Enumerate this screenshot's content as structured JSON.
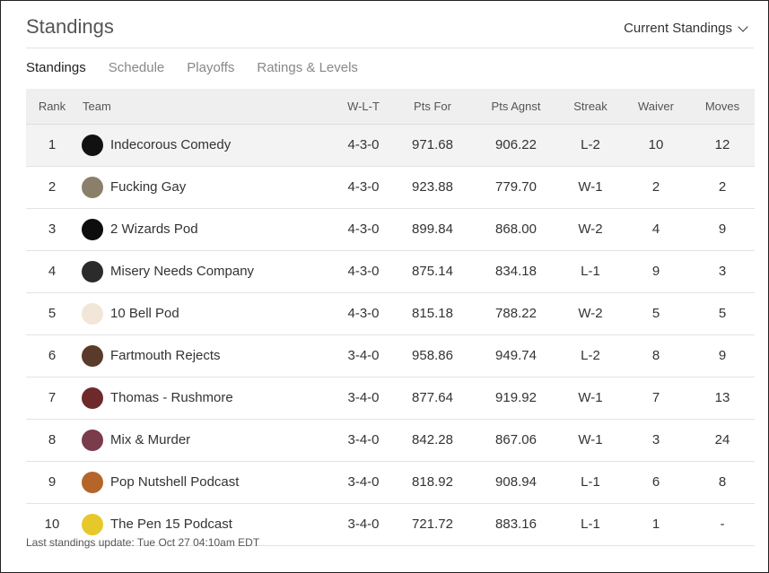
{
  "header": {
    "title": "Standings",
    "view_select": "Current Standings"
  },
  "tabs": [
    {
      "label": "Standings",
      "active": true
    },
    {
      "label": "Schedule",
      "active": false
    },
    {
      "label": "Playoffs",
      "active": false
    },
    {
      "label": "Ratings & Levels",
      "active": false
    }
  ],
  "table": {
    "columns": [
      "Rank",
      "Team",
      "W-L-T",
      "Pts For",
      "Pts Agnst",
      "Streak",
      "Waiver",
      "Moves"
    ],
    "rows": [
      {
        "rank": "1",
        "team": "Indecorous Comedy",
        "wlt": "4-3-0",
        "pts_for": "971.68",
        "pts_agnst": "906.22",
        "streak": "L-2",
        "waiver": "10",
        "moves": "12",
        "avatar_color": "#111111"
      },
      {
        "rank": "2",
        "team": "Fucking Gay",
        "wlt": "4-3-0",
        "pts_for": "923.88",
        "pts_agnst": "779.70",
        "streak": "W-1",
        "waiver": "2",
        "moves": "2",
        "avatar_color": "#8a7f6a"
      },
      {
        "rank": "3",
        "team": "2 Wizards Pod",
        "wlt": "4-3-0",
        "pts_for": "899.84",
        "pts_agnst": "868.00",
        "streak": "W-2",
        "waiver": "4",
        "moves": "9",
        "avatar_color": "#0d0d0d"
      },
      {
        "rank": "4",
        "team": "Misery Needs Company",
        "wlt": "4-3-0",
        "pts_for": "875.14",
        "pts_agnst": "834.18",
        "streak": "L-1",
        "waiver": "9",
        "moves": "3",
        "avatar_color": "#2b2b2b"
      },
      {
        "rank": "5",
        "team": "10 Bell Pod",
        "wlt": "4-3-0",
        "pts_for": "815.18",
        "pts_agnst": "788.22",
        "streak": "W-2",
        "waiver": "5",
        "moves": "5",
        "avatar_color": "#f2e6d8"
      },
      {
        "rank": "6",
        "team": "Fartmouth Rejects",
        "wlt": "3-4-0",
        "pts_for": "958.86",
        "pts_agnst": "949.74",
        "streak": "L-2",
        "waiver": "8",
        "moves": "9",
        "avatar_color": "#5a3a2a"
      },
      {
        "rank": "7",
        "team": "Thomas - Rushmore",
        "wlt": "3-4-0",
        "pts_for": "877.64",
        "pts_agnst": "919.92",
        "streak": "W-1",
        "waiver": "7",
        "moves": "13",
        "avatar_color": "#6e2a2a"
      },
      {
        "rank": "8",
        "team": "Mix & Murder",
        "wlt": "3-4-0",
        "pts_for": "842.28",
        "pts_agnst": "867.06",
        "streak": "W-1",
        "waiver": "3",
        "moves": "24",
        "avatar_color": "#7a3b4a"
      },
      {
        "rank": "9",
        "team": "Pop Nutshell Podcast",
        "wlt": "3-4-0",
        "pts_for": "818.92",
        "pts_agnst": "908.94",
        "streak": "L-1",
        "waiver": "6",
        "moves": "8",
        "avatar_color": "#b5652a"
      },
      {
        "rank": "10",
        "team": "The Pen 15 Podcast",
        "wlt": "3-4-0",
        "pts_for": "721.72",
        "pts_agnst": "883.16",
        "streak": "L-1",
        "waiver": "1",
        "moves": "-",
        "avatar_color": "#e6c82a"
      }
    ]
  },
  "footer": {
    "last_update": "Last standings update: Tue Oct 27 04:10am EDT"
  }
}
